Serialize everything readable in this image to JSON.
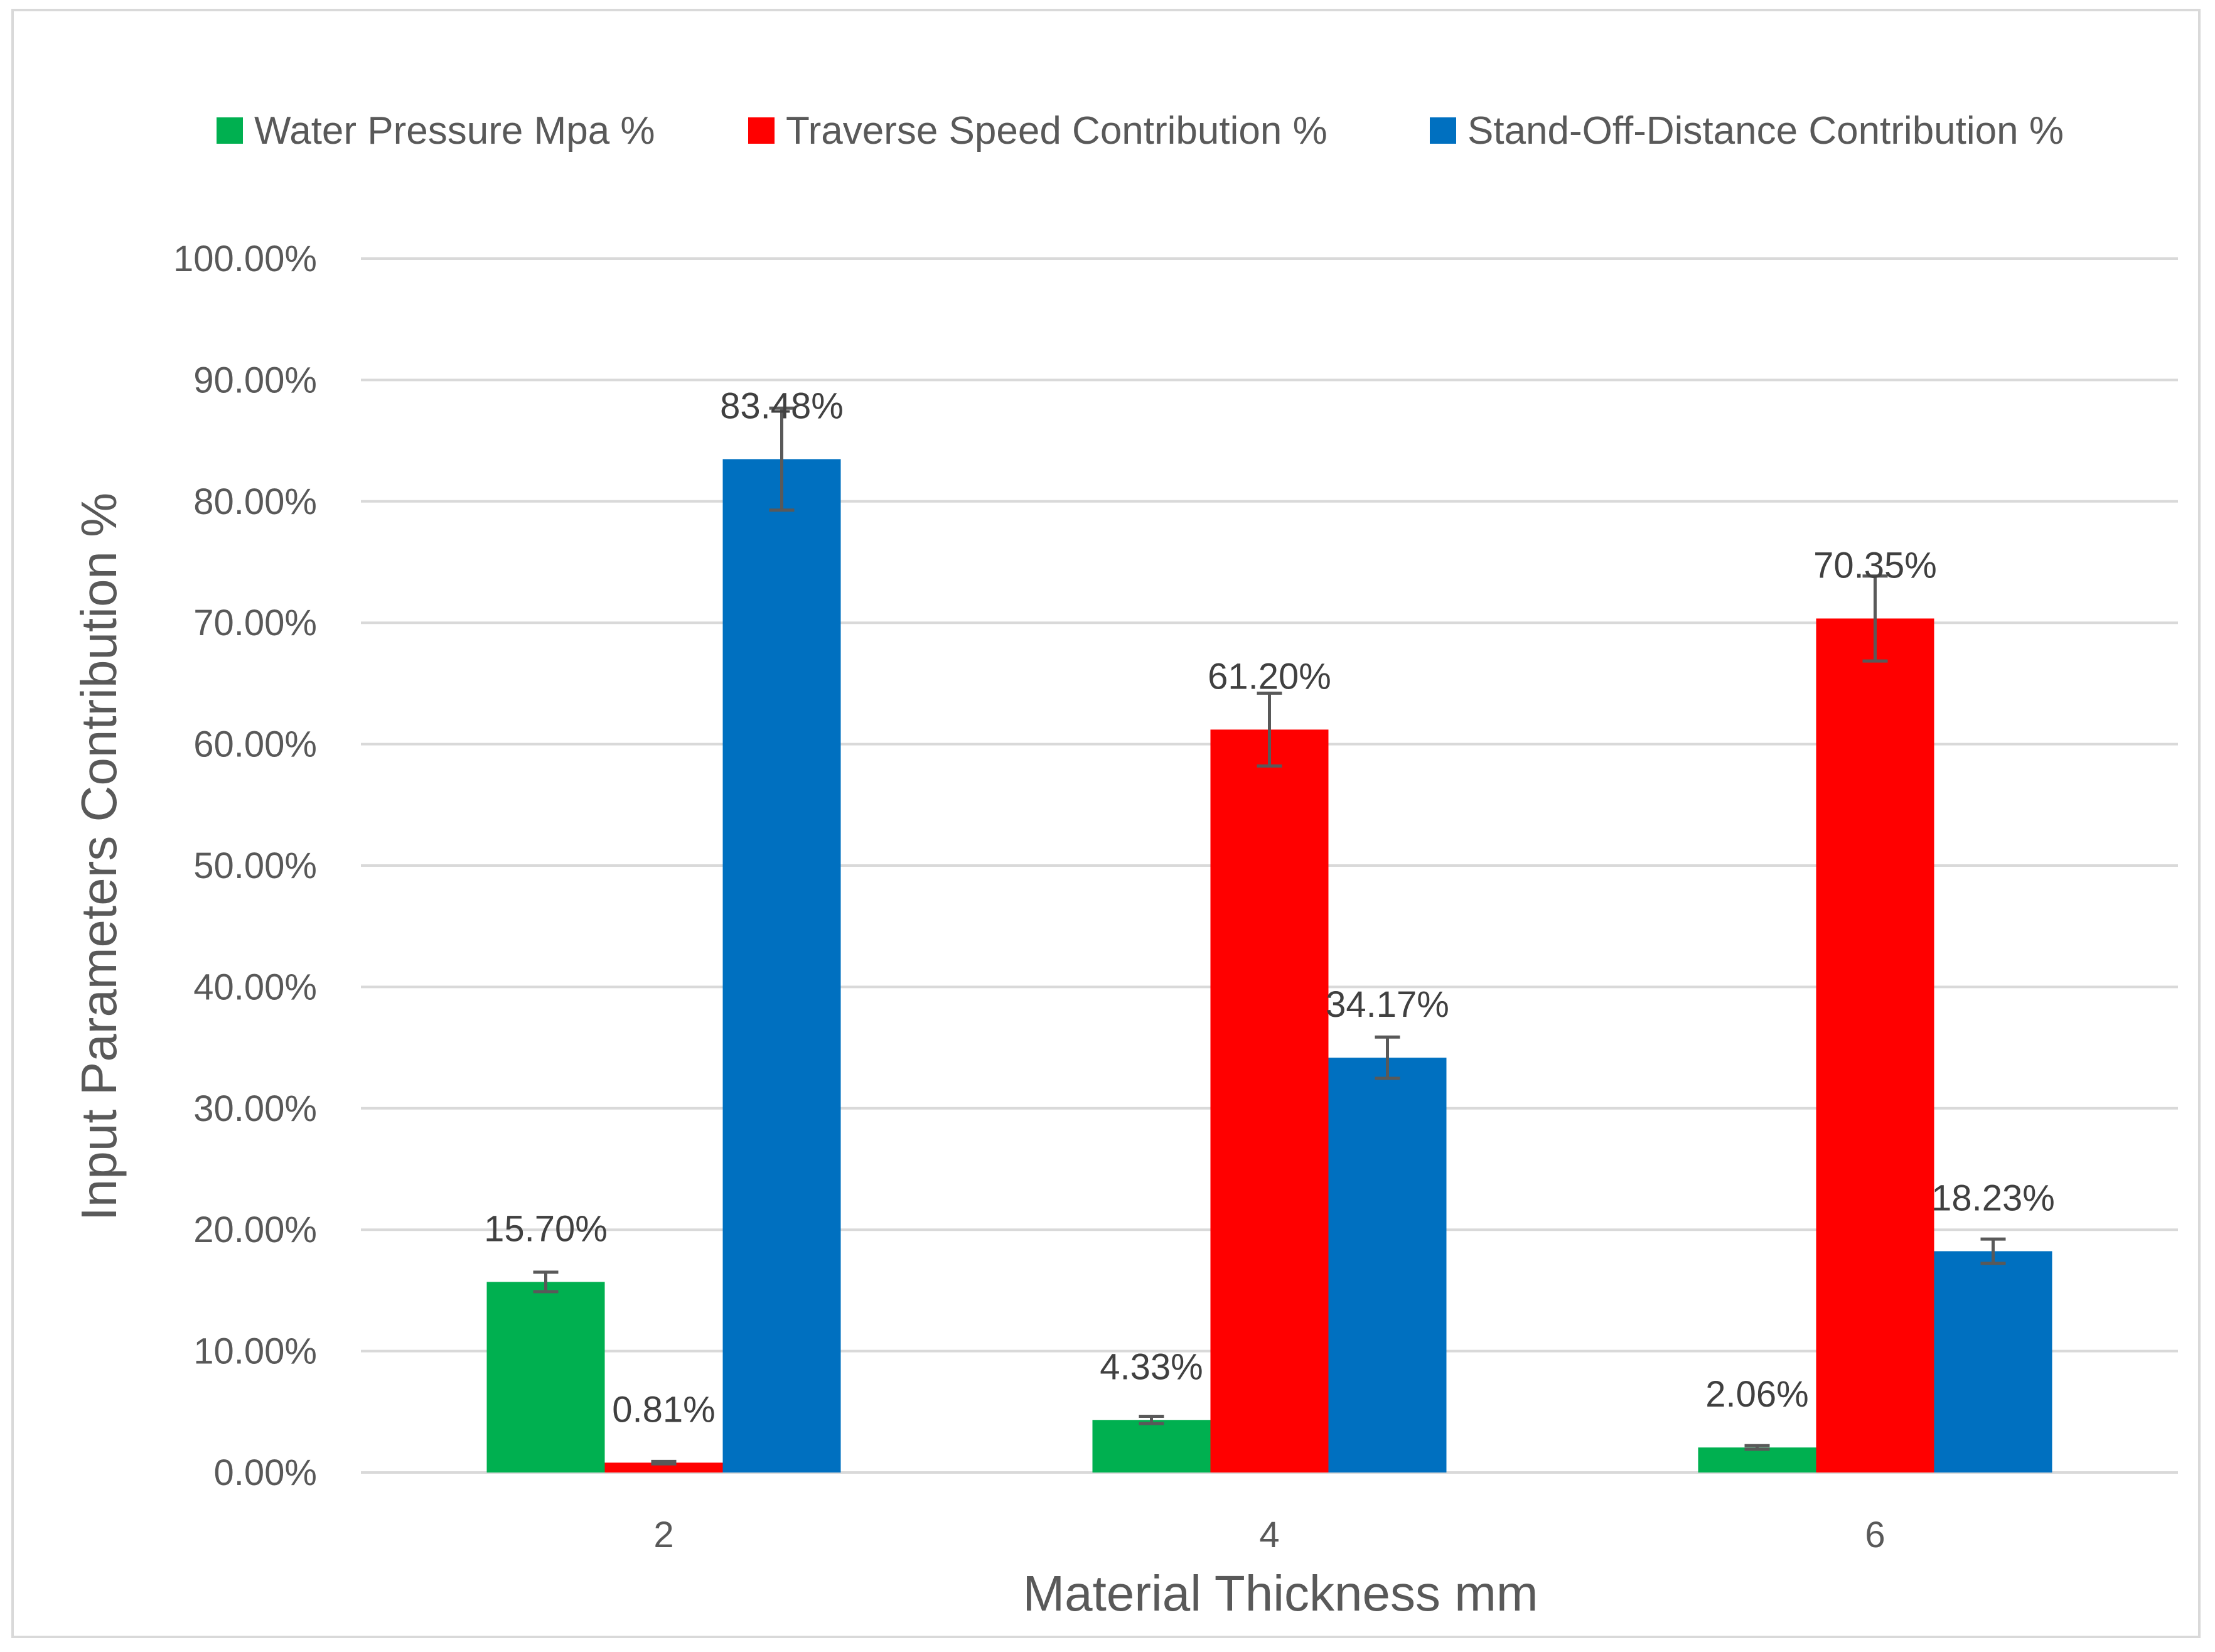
{
  "chart_data": {
    "type": "bar",
    "title": "",
    "xlabel": "Material Thickness mm",
    "ylabel": "Input Parameters Contribution %",
    "categories": [
      "2",
      "4",
      "6"
    ],
    "ylim": [
      0,
      100
    ],
    "yticks": [
      0,
      10,
      20,
      30,
      40,
      50,
      60,
      70,
      80,
      90,
      100
    ],
    "ytick_labels": [
      "0.00%",
      "10.00%",
      "20.00%",
      "30.00%",
      "40.00%",
      "50.00%",
      "60.00%",
      "70.00%",
      "80.00%",
      "90.00%",
      "100.00%"
    ],
    "grid": true,
    "legend_position": "top",
    "series": [
      {
        "name": "Water Pressure Mpa %",
        "color": "#00b050",
        "values": [
          15.7,
          4.33,
          2.06
        ],
        "labels": [
          "15.70%",
          "4.33%",
          "2.06%"
        ],
        "errors": [
          0.8,
          0.3,
          0.15
        ]
      },
      {
        "name": "Traverse Speed Contribution %",
        "color": "#ff0000",
        "values": [
          0.81,
          61.2,
          70.35
        ],
        "labels": [
          "0.81%",
          "61.20%",
          "70.35%"
        ],
        "errors": [
          0.1,
          3.0,
          3.5
        ]
      },
      {
        "name": "Stand-Off-Distance Contribution %",
        "color": "#0070c0",
        "values": [
          83.48,
          34.17,
          18.23
        ],
        "labels": [
          "83.48%",
          "34.17%",
          "18.23%"
        ],
        "errors": [
          4.2,
          1.7,
          1.0
        ]
      }
    ],
    "error_bar_color": "#595959",
    "grid_color": "#d9d9d9"
  }
}
